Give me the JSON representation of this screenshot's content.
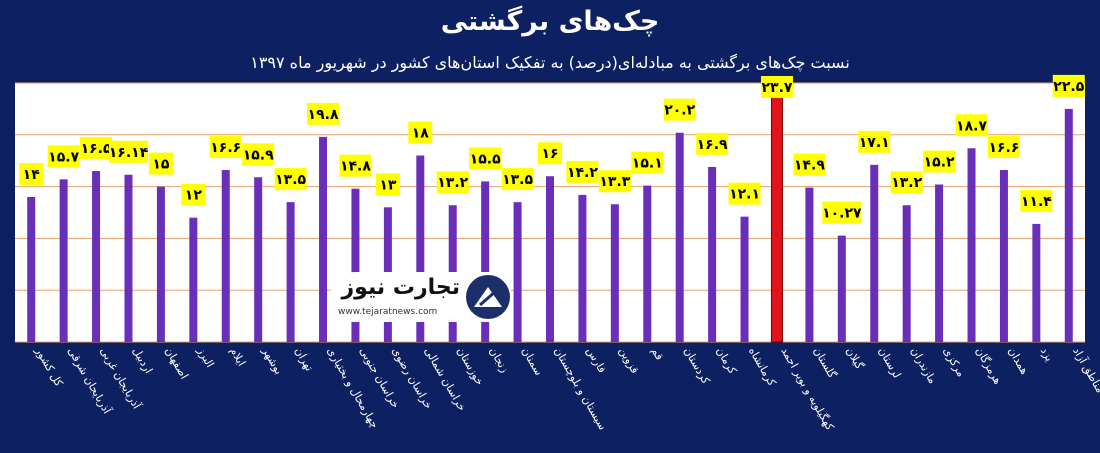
{
  "chart_data": {
    "type": "bar",
    "title": "چک‌های برگشتی",
    "subtitle": "نسبت چک‌های برگشتی به مبادله‌ای(درصد) به تفکیک استان‌های کشور در شهریور ماه ۱۳۹۷",
    "categories": [
      "کل کشور",
      "آذربایجان شرقی",
      "آذربایجان غربی",
      "اردبیل",
      "اصفهان",
      "البرز",
      "ایلام",
      "بوشهر",
      "تهران",
      "چهارمحال و بختیاری",
      "خراسان جنوبی",
      "خراسان رضوی",
      "خراسان شمالی",
      "خوزستان",
      "زنجان",
      "سمنان",
      "سیستان و بلوچستان",
      "فارس",
      "قزوین",
      "قم",
      "کردستان",
      "کرمان",
      "کرمانشاه",
      "کهگیلویه و بویر احمد",
      "گلستان",
      "گیلان",
      "لرستان",
      "مازندران",
      "مرکزی",
      "هرمزگان",
      "همدان",
      "یزد",
      "مناطق آزاد"
    ],
    "values": [
      14,
      15.7,
      16.5,
      16.14,
      15,
      12,
      16.6,
      15.9,
      13.5,
      19.8,
      14.8,
      13,
      18,
      13.2,
      15.5,
      13.5,
      16,
      14.2,
      13.3,
      15.1,
      20.2,
      16.9,
      12.1,
      23.7,
      14.9,
      10.27,
      17.1,
      13.2,
      15.2,
      18.7,
      16.6,
      11.4,
      22.5
    ],
    "value_labels": [
      "۱۴",
      "۱۵.۷",
      "۱۶.۵",
      "۱۶.۱۴",
      "۱۵",
      "۱۲",
      "۱۶.۶",
      "۱۵.۹",
      "۱۳.۵",
      "۱۹.۸",
      "۱۴.۸",
      "۱۳",
      "۱۸",
      "۱۳.۲",
      "۱۵.۵",
      "۱۳.۵",
      "۱۶",
      "۱۴.۲",
      "۱۳.۳",
      "۱۵.۱",
      "۲۰.۲",
      "۱۶.۹",
      "۱۲.۱",
      "۲۳.۷",
      "۱۴.۹",
      "۱۰.۲۷",
      "۱۷.۱",
      "۱۳.۲",
      "۱۵.۲",
      "۱۸.۷",
      "۱۶.۶",
      "۱۱.۴",
      "۲۲.۵"
    ],
    "highlight_index": 23,
    "ylim": [
      0,
      25
    ],
    "grid": true
  },
  "colors": {
    "background": "#0d2061",
    "plot_area": "#ffffff",
    "bar": "#6a2fb8",
    "bar_highlight": "#e0141a",
    "gridline": "#e8a069",
    "label_bg": "#ffff00",
    "label_text": "#000000",
    "text": "#ffffff"
  },
  "logo": {
    "brand": "تجارت نیوز",
    "url": "www.tejaratnews.com"
  }
}
